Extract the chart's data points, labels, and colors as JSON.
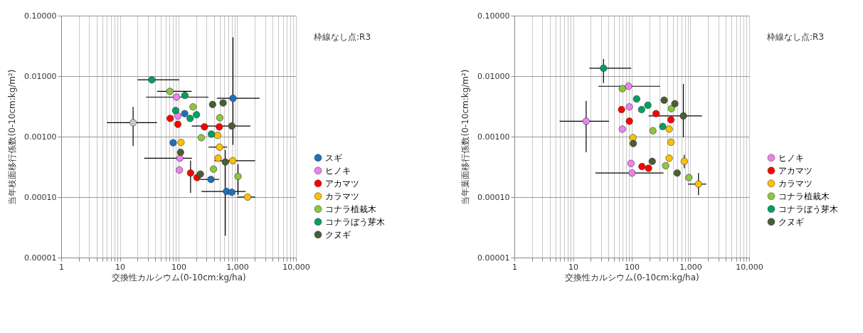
{
  "chart_data": [
    {
      "type": "scatter",
      "xlabel": "交換性カルシウム(0-10cm:kg/ha)",
      "ylabel": "当年枝面移行係数(0-10cm:kg/m²)",
      "annotations": [
        "枠線なし点:R3"
      ],
      "log": "xy",
      "grid": true,
      "legend": "right",
      "marker": "circle",
      "xlim": [
        1,
        10000
      ],
      "ylim": [
        1e-05,
        0.1
      ],
      "xticks": [
        1,
        {
          "value": 2,
          "label": null
        },
        {
          "value": 3,
          "label": null
        },
        {
          "value": 4,
          "label": null
        },
        {
          "value": 5,
          "label": null
        },
        {
          "value": 6,
          "label": null
        },
        {
          "value": 7,
          "label": null
        },
        {
          "value": 8,
          "label": null
        },
        {
          "value": 9,
          "label": null
        },
        10,
        {
          "value": 20,
          "label": null
        },
        {
          "value": 30,
          "label": null
        },
        {
          "value": 40,
          "label": null
        },
        {
          "value": 50,
          "label": null
        },
        {
          "value": 60,
          "label": null
        },
        {
          "value": 70,
          "label": null
        },
        {
          "value": 80,
          "label": null
        },
        {
          "value": 90,
          "label": null
        },
        100,
        {
          "value": 200,
          "label": null
        },
        {
          "value": 300,
          "label": null
        },
        {
          "value": 400,
          "label": null
        },
        {
          "value": 500,
          "label": null
        },
        {
          "value": 600,
          "label": null
        },
        {
          "value": 700,
          "label": null
        },
        {
          "value": 800,
          "label": null
        },
        {
          "value": 900,
          "label": null
        },
        {
          "value": 1000,
          "label": "1,000"
        },
        {
          "value": 2000,
          "label": null
        },
        {
          "value": 3000,
          "label": null
        },
        {
          "value": 4000,
          "label": null
        },
        {
          "value": 5000,
          "label": null
        },
        {
          "value": 6000,
          "label": null
        },
        {
          "value": 7000,
          "label": null
        },
        {
          "value": 8000,
          "label": null
        },
        {
          "value": 9000,
          "label": null
        },
        {
          "value": 10000,
          "label": "10,000"
        }
      ],
      "yticks": [
        {
          "value": 1e-05,
          "label": "0.00001"
        },
        {
          "value": 0.0001,
          "label": "0.00010"
        },
        {
          "value": 0.001,
          "label": "0.00100"
        },
        {
          "value": 0.01,
          "label": "0.01000"
        },
        {
          "value": 0.1,
          "label": "0.10000"
        }
      ],
      "series": [
        {
          "name": "スギ",
          "color": "#1f6fb8",
          "x": [
            127,
            845,
            81,
            356,
            654,
            806
          ],
          "values": [
            0.0024,
            0.0043,
            0.00079,
            0.000196,
            0.000124,
            0.00012
          ],
          "errors": [
            null,
            [
              0.00073,
              0.044
            ],
            null,
            null,
            null,
            null
          ],
          "xerrors": [
            null,
            [
              450,
              2400
            ],
            null,
            [
              233,
              490
            ],
            [
              245,
              1390
            ],
            null
          ]
        },
        {
          "name": "ヒノキ",
          "color": "#ee82ee",
          "x": [
            92,
            97,
            105,
            103
          ],
          "values": [
            0.0045,
            0.0022,
            0.00044,
            0.00028
          ],
          "errors": [
            null,
            null,
            null,
            null
          ],
          "xerrors": [
            [
              28,
              323
            ],
            null,
            [
              26,
              168
            ],
            null
          ]
        },
        {
          "name": "アカマツ",
          "color": "#ff0000",
          "x": [
            72,
            97,
            276,
            494,
            160,
            206
          ],
          "values": [
            0.002,
            0.0016,
            0.00145,
            0.00145,
            0.00025,
            0.00021
          ],
          "errors": [
            null,
            null,
            null,
            null,
            [
              0.000118,
              0.0004
            ],
            null
          ],
          "xerrors": [
            null,
            null,
            null,
            null,
            null,
            null
          ]
        },
        {
          "name": "カラマツ",
          "color": "#ffc000",
          "x": [
            463,
            110,
            499,
            471,
            836,
            1500
          ],
          "values": [
            0.00105,
            0.0008,
            0.00067,
            0.00044,
            0.0004,
            0.0001
          ],
          "errors": [
            null,
            null,
            null,
            null,
            null,
            null
          ],
          "xerrors": [
            null,
            null,
            [
              324,
              674
            ],
            null,
            [
              410,
              2020
            ],
            [
              1000,
              2020
            ]
          ]
        },
        {
          "name": "コナラ植栽木",
          "color": "#8dc63f",
          "x": [
            71,
            176,
            504,
            244,
            394,
            1030
          ],
          "values": [
            0.0056,
            0.0031,
            0.00205,
            0.00096,
            0.00029,
            0.00022
          ],
          "errors": [
            null,
            null,
            null,
            null,
            null,
            [
              0.000108,
              0.00035
            ]
          ],
          "xerrors": [
            [
              43,
              167
            ],
            null,
            null,
            null,
            null,
            null
          ]
        },
        {
          "name": "コナラぼう芽木",
          "color": "#00a060",
          "x": [
            35,
            128,
            89,
            202,
            157,
            362
          ],
          "values": [
            0.0087,
            0.0048,
            0.0027,
            0.0023,
            0.002,
            0.0011
          ],
          "errors": [
            null,
            null,
            null,
            null,
            null,
            null
          ],
          "xerrors": [
            [
              20,
              103
            ],
            null,
            null,
            null,
            null,
            null
          ]
        },
        {
          "name": "クヌギ",
          "color": "#4b5d33",
          "x": [
            380,
            574,
            806,
            108,
            625,
            235
          ],
          "values": [
            0.0034,
            0.0036,
            0.0015,
            0.00055,
            0.00038,
            0.00024
          ],
          "errors": [
            null,
            null,
            null,
            null,
            [
              2.3e-05,
              0.0006
            ],
            null
          ],
          "xerrors": [
            null,
            null,
            [
              168,
              1675
            ],
            null,
            null,
            null
          ]
        },
        {
          "color": "#c8c8c8",
          "x": [
            16.8
          ],
          "values": [
            0.0017
          ],
          "errors": [
            [
              0.0007,
              0.0031
            ]
          ],
          "xerrors": [
            [
              6,
              43
            ]
          ]
        }
      ]
    },
    {
      "type": "scatter",
      "xlabel": "交換性カルシウム(0-10cm:kg/ha)",
      "ylabel": "当年葉面移行係数(0-10cm:kg/m²)",
      "annotations": [
        "枠線なし点:R3"
      ],
      "log": "xy",
      "grid": true,
      "legend": "right",
      "marker": "circle",
      "xlim": [
        1,
        10000
      ],
      "ylim": [
        1e-05,
        0.1
      ],
      "xticks": [
        1,
        {
          "value": 2,
          "label": null
        },
        {
          "value": 3,
          "label": null
        },
        {
          "value": 4,
          "label": null
        },
        {
          "value": 5,
          "label": null
        },
        {
          "value": 6,
          "label": null
        },
        {
          "value": 7,
          "label": null
        },
        {
          "value": 8,
          "label": null
        },
        {
          "value": 9,
          "label": null
        },
        10,
        {
          "value": 20,
          "label": null
        },
        {
          "value": 30,
          "label": null
        },
        {
          "value": 40,
          "label": null
        },
        {
          "value": 50,
          "label": null
        },
        {
          "value": 60,
          "label": null
        },
        {
          "value": 70,
          "label": null
        },
        {
          "value": 80,
          "label": null
        },
        {
          "value": 90,
          "label": null
        },
        100,
        {
          "value": 200,
          "label": null
        },
        {
          "value": 300,
          "label": null
        },
        {
          "value": 400,
          "label": null
        },
        {
          "value": 500,
          "label": null
        },
        {
          "value": 600,
          "label": null
        },
        {
          "value": 700,
          "label": null
        },
        {
          "value": 800,
          "label": null
        },
        {
          "value": 900,
          "label": null
        },
        {
          "value": 1000,
          "label": "1,000"
        },
        {
          "value": 2000,
          "label": null
        },
        {
          "value": 3000,
          "label": null
        },
        {
          "value": 4000,
          "label": null
        },
        {
          "value": 5000,
          "label": null
        },
        {
          "value": 6000,
          "label": null
        },
        {
          "value": 7000,
          "label": null
        },
        {
          "value": 8000,
          "label": null
        },
        {
          "value": 9000,
          "label": null
        },
        {
          "value": 10000,
          "label": "10,000"
        }
      ],
      "yticks": [
        {
          "value": 1e-05,
          "label": "0.00001"
        },
        {
          "value": 0.0001,
          "label": "0.00010"
        },
        {
          "value": 0.001,
          "label": "0.00100"
        },
        {
          "value": 0.01,
          "label": "0.01000"
        },
        {
          "value": 0.1,
          "label": "0.10000"
        }
      ],
      "series": [
        {
          "name": "ヒノキ",
          "color": "#ee82ee",
          "x": [
            88,
            91,
            16.7,
            69,
            97,
            101
          ],
          "values": [
            0.0068,
            0.0031,
            0.0018,
            0.00133,
            0.00036,
            0.00025
          ],
          "errors": [
            null,
            null,
            [
              0.00055,
              0.0039
            ],
            null,
            null,
            null
          ],
          "xerrors": [
            [
              27,
              302
            ],
            null,
            [
              5.9,
              41
            ],
            null,
            null,
            [
              24,
              346
            ]
          ]
        },
        {
          "name": "アカマツ",
          "color": "#ff0000",
          "x": [
            67,
            91,
            259,
            465,
            149,
            193
          ],
          "values": [
            0.0028,
            0.0018,
            0.0024,
            0.0019,
            0.00032,
            0.0003
          ],
          "errors": [
            null,
            null,
            null,
            null,
            null,
            null
          ],
          "xerrors": [
            null,
            null,
            null,
            null,
            null,
            null
          ]
        },
        {
          "name": "カラマツ",
          "color": "#ffc000",
          "x": [
            433,
            105,
            465,
            433,
            784,
            1370
          ],
          "values": [
            0.00133,
            0.00096,
            0.00081,
            0.00044,
            0.00039,
            0.000164
          ],
          "errors": [
            null,
            null,
            null,
            null,
            [
              0.0003,
              0.0005
            ],
            [
              0.000108,
              0.00025
            ]
          ],
          "xerrors": [
            null,
            null,
            null,
            null,
            null,
            [
              905,
              1860
            ]
          ]
        },
        {
          "name": "コナラ植栽木",
          "color": "#8dc63f",
          "x": [
            69,
            474,
            229,
            378,
            939
          ],
          "values": [
            0.0062,
            0.0029,
            0.00125,
            0.00033,
            0.00021
          ],
          "errors": [
            null,
            null,
            null,
            null,
            null
          ],
          "xerrors": [
            null,
            null,
            null,
            null,
            null
          ]
        },
        {
          "name": "コナラぼう芽木",
          "color": "#00a060",
          "x": [
            33,
            121,
            188,
            147,
            337
          ],
          "values": [
            0.0135,
            0.0042,
            0.0033,
            0.0028,
            0.00147
          ],
          "errors": [
            [
              0.0077,
              0.0193
            ],
            null,
            null,
            null,
            null
          ],
          "xerrors": [
            [
              19,
              98
            ],
            null,
            null,
            null,
            null
          ]
        },
        {
          "name": "クヌギ",
          "color": "#4b5d33",
          "x": [
            356,
            542,
            757,
            106,
            223,
            593
          ],
          "values": [
            0.004,
            0.0035,
            0.0022,
            0.00077,
            0.00039,
            0.00025
          ],
          "errors": [
            null,
            null,
            [
              0.00097,
              0.0074
            ],
            null,
            null,
            null
          ],
          "xerrors": [
            null,
            null,
            [
              193,
              1570
            ],
            null,
            null,
            null
          ]
        }
      ]
    }
  ]
}
